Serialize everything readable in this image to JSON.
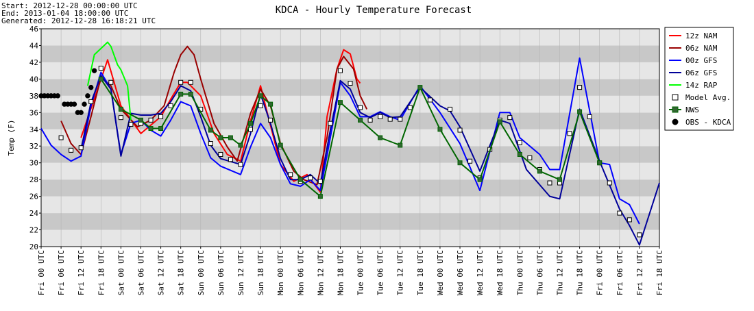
{
  "chart_data": {
    "type": "line",
    "title": "KDCA - Hourly Temperature Forecast",
    "header": [
      "Start: 2012-12-28 00:00:00 UTC",
      "End: 2013-01-04 18:00:00 UTC",
      "Generated: 2012-12-28 16:18:21 UTC"
    ],
    "ylabel": "Temp (F)",
    "ylim": [
      20,
      46
    ],
    "yticks": [
      20,
      22,
      24,
      26,
      28,
      30,
      32,
      34,
      36,
      38,
      40,
      42,
      44,
      46
    ],
    "xlim": [
      0,
      186
    ],
    "xticks": [
      {
        "value": 0,
        "label": "Fri 00 UTC"
      },
      {
        "value": 6,
        "label": "Fri 06 UTC"
      },
      {
        "value": 12,
        "label": "Fri 12 UTC"
      },
      {
        "value": 18,
        "label": "Fri 18 UTC"
      },
      {
        "value": 24,
        "label": "Sat 00 UTC"
      },
      {
        "value": 30,
        "label": "Sat 06 UTC"
      },
      {
        "value": 36,
        "label": "Sat 12 UTC"
      },
      {
        "value": 42,
        "label": "Sat 18 UTC"
      },
      {
        "value": 48,
        "label": "Sun 00 UTC"
      },
      {
        "value": 54,
        "label": "Sun 06 UTC"
      },
      {
        "value": 60,
        "label": "Sun 12 UTC"
      },
      {
        "value": 66,
        "label": "Sun 18 UTC"
      },
      {
        "value": 72,
        "label": "Mon 00 UTC"
      },
      {
        "value": 78,
        "label": "Mon 06 UTC"
      },
      {
        "value": 84,
        "label": "Mon 12 UTC"
      },
      {
        "value": 90,
        "label": "Mon 18 UTC"
      },
      {
        "value": 96,
        "label": "Tue 00 UTC"
      },
      {
        "value": 102,
        "label": "Tue 06 UTC"
      },
      {
        "value": 108,
        "label": "Tue 12 UTC"
      },
      {
        "value": 114,
        "label": "Tue 18 UTC"
      },
      {
        "value": 120,
        "label": "Wed 00 UTC"
      },
      {
        "value": 126,
        "label": "Wed 06 UTC"
      },
      {
        "value": 132,
        "label": "Wed 12 UTC"
      },
      {
        "value": 138,
        "label": "Wed 18 UTC"
      },
      {
        "value": 144,
        "label": "Thu 00 UTC"
      },
      {
        "value": 150,
        "label": "Thu 06 UTC"
      },
      {
        "value": 156,
        "label": "Thu 12 UTC"
      },
      {
        "value": 162,
        "label": "Thu 18 UTC"
      },
      {
        "value": 168,
        "label": "Fri 00 UTC"
      },
      {
        "value": 174,
        "label": "Fri 06 UTC"
      },
      {
        "value": 180,
        "label": "Fri 12 UTC"
      },
      {
        "value": 186,
        "label": "Fri 18 UTC"
      }
    ],
    "grid": true,
    "legend": "right",
    "series": [
      {
        "name": "12z NAM",
        "color": "#ff0000",
        "line": true,
        "x": [
          12,
          20,
          24,
          30,
          36,
          39,
          42,
          44,
          48,
          52,
          56,
          60,
          63,
          66,
          68,
          72,
          76,
          80,
          84,
          86,
          89,
          91,
          93,
          95,
          96
        ],
        "values": [
          33,
          42.3,
          36.8,
          33.5,
          35.5,
          37.6,
          39.6,
          39.6,
          38,
          33.5,
          31,
          30.2,
          35,
          39.2,
          36,
          29.8,
          27.8,
          28.6,
          26.5,
          35.5,
          41.2,
          43.5,
          43,
          40,
          39.5
        ]
      },
      {
        "name": "06z NAM",
        "color": "#990000",
        "line": true,
        "x": [
          6,
          9,
          12,
          15,
          18,
          21,
          24,
          29,
          33,
          37,
          40,
          42,
          44,
          46,
          48,
          52,
          56,
          59,
          63,
          66,
          69,
          72,
          76,
          79,
          83,
          86,
          89,
          91,
          94,
          96,
          98
        ],
        "values": [
          35,
          32.3,
          31,
          35.5,
          40.2,
          39.2,
          36.4,
          34.3,
          35.1,
          36.8,
          40.8,
          42.9,
          43.9,
          42.9,
          40,
          34.7,
          31.9,
          30.2,
          35.9,
          38.8,
          36.8,
          32.3,
          29,
          28,
          27.4,
          33,
          41.2,
          42.7,
          41.2,
          38,
          36.4
        ]
      },
      {
        "name": "00z GFS",
        "color": "#0000ff",
        "line": true,
        "x": [
          0,
          3,
          6,
          9,
          12,
          15,
          18,
          21,
          24,
          27,
          30,
          33,
          36,
          39,
          42,
          45,
          48,
          51,
          54,
          60,
          63,
          66,
          69,
          72,
          75,
          78,
          81,
          84,
          87,
          90,
          93,
          96,
          99,
          102,
          105,
          108,
          114,
          120,
          126,
          132,
          138,
          141,
          144,
          150,
          153,
          156,
          162,
          168,
          171,
          174,
          177,
          180
        ],
        "values": [
          34.1,
          32.1,
          31,
          30.2,
          30.8,
          36.8,
          40.8,
          38.8,
          31,
          34.7,
          35.1,
          33.9,
          33.2,
          35.1,
          37.3,
          36.8,
          33.5,
          30.6,
          29.6,
          28.6,
          31.9,
          34.7,
          33,
          29.8,
          27.5,
          27.2,
          28,
          26.7,
          33,
          39.6,
          38,
          35.5,
          35.5,
          36.1,
          35.5,
          35.1,
          39.2,
          36,
          32.3,
          26.7,
          36,
          36,
          33,
          31,
          29.2,
          29.2,
          42.5,
          30,
          29.8,
          25.7,
          25,
          22.7
        ]
      },
      {
        "name": "06z GFS",
        "color": "#000099",
        "line": true,
        "x": [
          12,
          15,
          18,
          21,
          24,
          27,
          30,
          33,
          36,
          39,
          42,
          45,
          48,
          51,
          54,
          60,
          63,
          66,
          69,
          72,
          75,
          78,
          81,
          84,
          87,
          90,
          93,
          96,
          99,
          102,
          105,
          108,
          114,
          120,
          123,
          126,
          132,
          138,
          141,
          146,
          153,
          156,
          162,
          168,
          174,
          177,
          180,
          186
        ],
        "values": [
          31.6,
          37.2,
          40.4,
          38.8,
          30.8,
          35.9,
          35.7,
          35.7,
          35.9,
          37.3,
          39.2,
          38.6,
          35.5,
          32.1,
          30.5,
          29.8,
          33.5,
          38.2,
          34.7,
          30.5,
          28,
          28,
          28.6,
          27.5,
          33.9,
          39.8,
          38.8,
          36,
          35.4,
          36,
          35.4,
          35.5,
          39,
          36.8,
          36.2,
          34.3,
          29,
          35.1,
          34.7,
          29.2,
          26,
          25.7,
          36.4,
          30.2,
          24.5,
          22.5,
          20.2,
          27.6
        ]
      },
      {
        "name": "14z RAP",
        "color": "#00ff00",
        "line": true,
        "x": [
          14,
          16,
          20,
          21,
          23,
          24,
          26,
          27
        ],
        "values": [
          39.2,
          42.9,
          44.4,
          43.9,
          41.7,
          41.1,
          39.2,
          35.1
        ]
      },
      {
        "name": "Model Avg.",
        "color": "#000000",
        "line": false,
        "marker": "square",
        "marker_fill": "#ffffff",
        "x": [
          6,
          9,
          12,
          15,
          18,
          21,
          24,
          27,
          30,
          33,
          36,
          39,
          42,
          45,
          48,
          51,
          54,
          57,
          60,
          63,
          66,
          69,
          72,
          75,
          78,
          81,
          84,
          87,
          90,
          93,
          96,
          99,
          102,
          105,
          108,
          111,
          117,
          123,
          126,
          129,
          132,
          135,
          138,
          141,
          144,
          147,
          150,
          153,
          156,
          159,
          162,
          165,
          168,
          171,
          174,
          177,
          180
        ],
        "values": [
          33,
          31.5,
          31.8,
          37.3,
          41.3,
          39.6,
          35.4,
          34.6,
          34.7,
          35.1,
          35.5,
          36.8,
          39.6,
          39.6,
          36.4,
          32.3,
          31,
          30.4,
          29.8,
          34,
          36.8,
          35.1,
          31.9,
          28.6,
          27.8,
          28.2,
          27.8,
          34.7,
          41,
          39.5,
          36.6,
          35.1,
          35.5,
          35.2,
          35.2,
          36.6,
          37.5,
          36.4,
          33.9,
          30.2,
          28.2,
          31.6,
          35.1,
          35.4,
          32.4,
          30.6,
          29.2,
          27.6,
          27.6,
          33.5,
          39,
          35.5,
          30,
          27.6,
          24,
          23.2,
          21.4
        ]
      },
      {
        "name": "NWS",
        "color": "#006600",
        "line": true,
        "marker": "square",
        "marker_fill": "#336633",
        "x": [
          18,
          24,
          30,
          33,
          36,
          42,
          45,
          51,
          54,
          57,
          60,
          63,
          66,
          69,
          72,
          78,
          84,
          90,
          96,
          102,
          108,
          114,
          120,
          126,
          132,
          138,
          144,
          150,
          156,
          162,
          168
        ],
        "values": [
          40,
          36.4,
          35.1,
          34.1,
          34.1,
          38.2,
          38.2,
          33.9,
          33,
          33,
          32.1,
          34.7,
          38,
          37,
          32.1,
          28,
          26,
          37.2,
          35.1,
          33,
          32.1,
          39,
          34,
          30,
          28,
          34.9,
          31,
          29,
          28,
          36.1,
          30
        ]
      },
      {
        "name": "OBS - KDCA",
        "color": "#000000",
        "line": false,
        "marker": "circle",
        "marker_fill": "#000000",
        "x": [
          0,
          1,
          2,
          3,
          4,
          5,
          7,
          8,
          9,
          10,
          11,
          12,
          13,
          14,
          15,
          16
        ],
        "values": [
          38,
          38,
          38,
          38,
          38,
          38,
          37,
          37,
          37,
          37,
          36,
          36,
          37,
          38,
          39,
          41
        ]
      }
    ]
  }
}
